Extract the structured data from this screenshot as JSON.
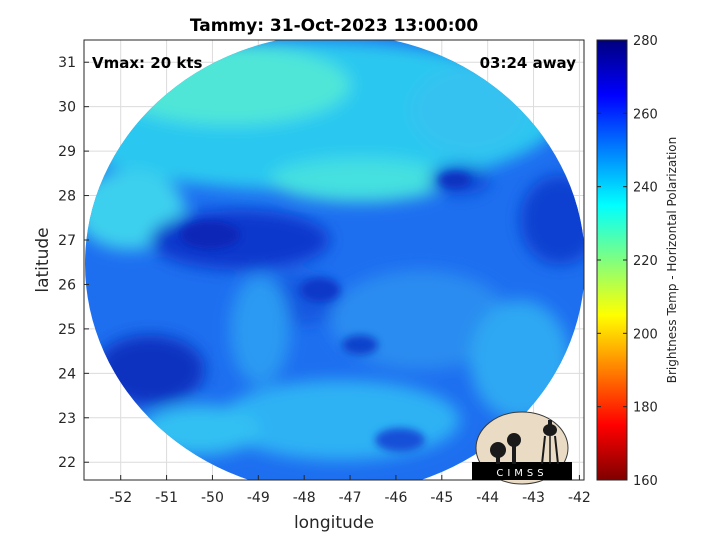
{
  "title": "Tammy: 31-Oct-2023 13:00:00",
  "overlay": {
    "vmax_text": "Vmax: 20 kts",
    "time_text": "03:24 away"
  },
  "axes": {
    "xlabel": "longitude",
    "ylabel": "latitude",
    "xlim": [
      -52.8,
      -41.9
    ],
    "ylim": [
      21.6,
      31.5
    ],
    "xticks": [
      -52,
      -51,
      -50,
      -49,
      -48,
      -47,
      -46,
      -45,
      -44,
      -43,
      -42
    ],
    "yticks": [
      22,
      23,
      24,
      25,
      26,
      27,
      28,
      29,
      30,
      31
    ],
    "grid": true
  },
  "colorbar": {
    "label": "Brightness Temp - Horizontal Polarization",
    "range": [
      160,
      280
    ],
    "ticks": [
      160,
      180,
      200,
      220,
      240,
      260,
      280
    ],
    "colormap": "jet"
  },
  "swath": {
    "center_lon": -47.3,
    "center_lat": 26.4,
    "typical_value_k": 252,
    "cold_band_value_k": 262,
    "warm_north_value_k": 236
  },
  "logo": {
    "text": "CIMSS"
  },
  "colors": {
    "swath_base": "#1e6ff0",
    "warm_region": "#35d8f0",
    "cold_region": "#0a35c8",
    "grid": "#dcdcdc",
    "axis": "#262626"
  }
}
